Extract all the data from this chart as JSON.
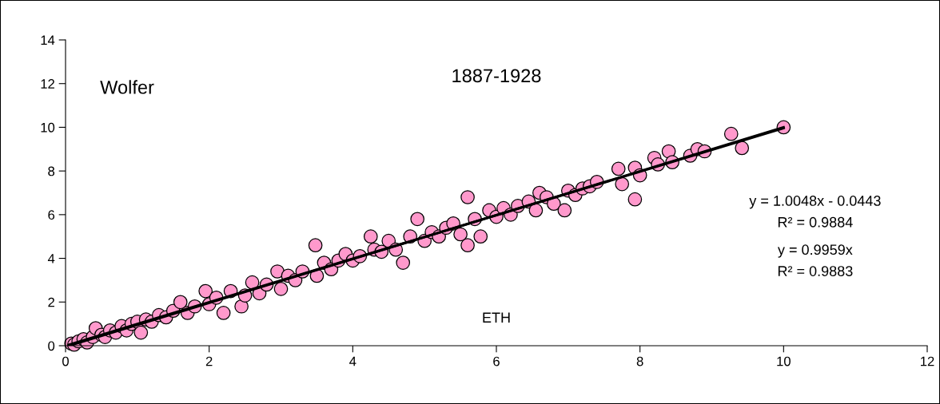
{
  "chart_data": {
    "type": "scatter",
    "title": "1887-1928",
    "xlabel": "ETH",
    "ylabel": "Wolfer",
    "xlim": [
      0,
      12
    ],
    "ylim": [
      0,
      14
    ],
    "xticks": [
      0,
      2,
      4,
      6,
      8,
      10,
      12
    ],
    "yticks": [
      0,
      2,
      4,
      6,
      8,
      10,
      12,
      14
    ],
    "grid": false,
    "legend": false,
    "annotations": [
      "y = 1.0048x - 0.0443",
      "R² = 0.9884",
      "y = 0.9959x",
      "R² = 0.9883"
    ],
    "series": [
      {
        "color": "#ff99cc",
        "marker": "circle",
        "x": [
          0.08,
          0.12,
          0.18,
          0.25,
          0.3,
          0.38,
          0.42,
          0.5,
          0.55,
          0.62,
          0.7,
          0.78,
          0.85,
          0.92,
          1.0,
          1.05,
          1.12,
          1.2,
          1.3,
          1.4,
          1.5,
          1.6,
          1.7,
          1.8,
          1.95,
          2.0,
          2.1,
          2.2,
          2.3,
          2.45,
          2.5,
          2.6,
          2.7,
          2.8,
          2.95,
          3.0,
          3.1,
          3.2,
          3.3,
          3.48,
          3.5,
          3.6,
          3.7,
          3.8,
          3.9,
          4.0,
          4.1,
          4.25,
          4.3,
          4.4,
          4.5,
          4.6,
          4.7,
          4.8,
          4.9,
          5.0,
          5.1,
          5.2,
          5.3,
          5.4,
          5.5,
          5.6,
          5.6,
          5.7,
          5.78,
          5.9,
          6.0,
          6.1,
          6.2,
          6.3,
          6.45,
          6.55,
          6.6,
          6.7,
          6.8,
          6.95,
          7.0,
          7.1,
          7.2,
          7.3,
          7.4,
          7.7,
          7.75,
          7.93,
          7.93,
          8.0,
          8.2,
          8.25,
          8.4,
          8.45,
          8.7,
          8.8,
          8.9,
          9.27,
          9.42,
          10.0
        ],
        "values": [
          0.1,
          0.05,
          0.2,
          0.3,
          0.15,
          0.4,
          0.8,
          0.5,
          0.4,
          0.7,
          0.6,
          0.9,
          0.7,
          1.0,
          1.1,
          0.6,
          1.2,
          1.1,
          1.4,
          1.3,
          1.6,
          2.0,
          1.5,
          1.8,
          2.5,
          1.9,
          2.2,
          1.5,
          2.5,
          1.8,
          2.3,
          2.9,
          2.4,
          2.8,
          3.4,
          2.6,
          3.2,
          3.0,
          3.4,
          4.6,
          3.2,
          3.8,
          3.5,
          3.9,
          4.2,
          3.9,
          4.1,
          5.0,
          4.4,
          4.3,
          4.8,
          4.4,
          3.8,
          5.0,
          5.8,
          4.8,
          5.2,
          5.0,
          5.4,
          5.6,
          5.1,
          6.8,
          4.6,
          5.8,
          5.0,
          6.2,
          5.9,
          6.3,
          6.0,
          6.4,
          6.6,
          6.2,
          7.0,
          6.8,
          6.5,
          6.2,
          7.1,
          6.9,
          7.2,
          7.3,
          7.5,
          8.1,
          7.4,
          6.7,
          8.15,
          7.8,
          8.6,
          8.3,
          8.9,
          8.4,
          8.7,
          9.0,
          8.9,
          9.7,
          9.05,
          10.0
        ]
      },
      {
        "type": "line",
        "color": "#000000",
        "x": [
          0.05,
          10.0
        ],
        "values": [
          0.0,
          10.0
        ]
      },
      {
        "type": "line",
        "color": "#000000",
        "x": [
          0.05,
          10.0
        ],
        "values": [
          0.05,
          9.96
        ]
      }
    ]
  }
}
